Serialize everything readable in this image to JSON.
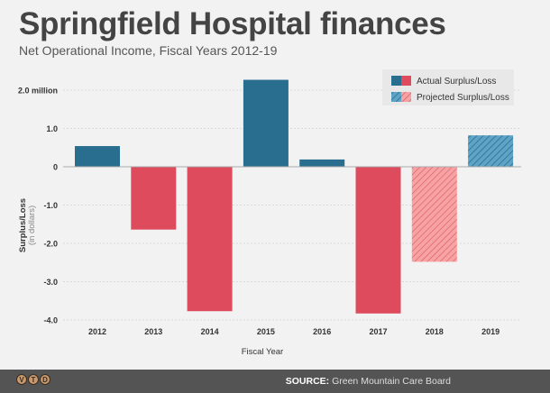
{
  "header": {
    "title": "Springfield Hospital finances",
    "subtitle": "Net Operational Income, Fiscal Years 2012-19"
  },
  "footer": {
    "logo_letters": [
      "V",
      "T",
      "D"
    ],
    "source_label": "SOURCE:",
    "source_text": "Green Mountain Care Board"
  },
  "chart_data": {
    "type": "bar",
    "title": "Springfield Hospital finances",
    "subtitle": "Net Operational Income, Fiscal Years 2012-19",
    "xlabel": "Fiscal Year",
    "ylabel": "Surplus/Loss",
    "ylabel_sub": "(in dollars)",
    "ylim": [
      -4.0,
      2.0
    ],
    "yticks": [
      2.0,
      1.0,
      0,
      -1.0,
      -2.0,
      -3.0,
      -4.0
    ],
    "ytick_labels": [
      "2.0 million",
      "1.0",
      "0",
      "-1.0",
      "-2.0",
      "-3.0",
      "-4.0"
    ],
    "grid": true,
    "legend_position": "top-right",
    "legend": [
      {
        "label": "Actual Surplus/Loss",
        "style": "solid"
      },
      {
        "label": "Projected Surplus/Loss",
        "style": "hatched"
      }
    ],
    "colors": {
      "positive": "#2a6e8f",
      "negative": "#dd4b5d",
      "projected_positive": "#5fa4c7",
      "projected_negative": "#f5a0a0"
    },
    "categories": [
      "2012",
      "2013",
      "2014",
      "2015",
      "2016",
      "2017",
      "2018",
      "2019"
    ],
    "values": [
      0.54,
      -1.64,
      -3.77,
      2.27,
      0.19,
      -3.83,
      -2.48,
      0.82
    ],
    "projected": [
      false,
      false,
      false,
      false,
      false,
      false,
      true,
      true
    ]
  }
}
